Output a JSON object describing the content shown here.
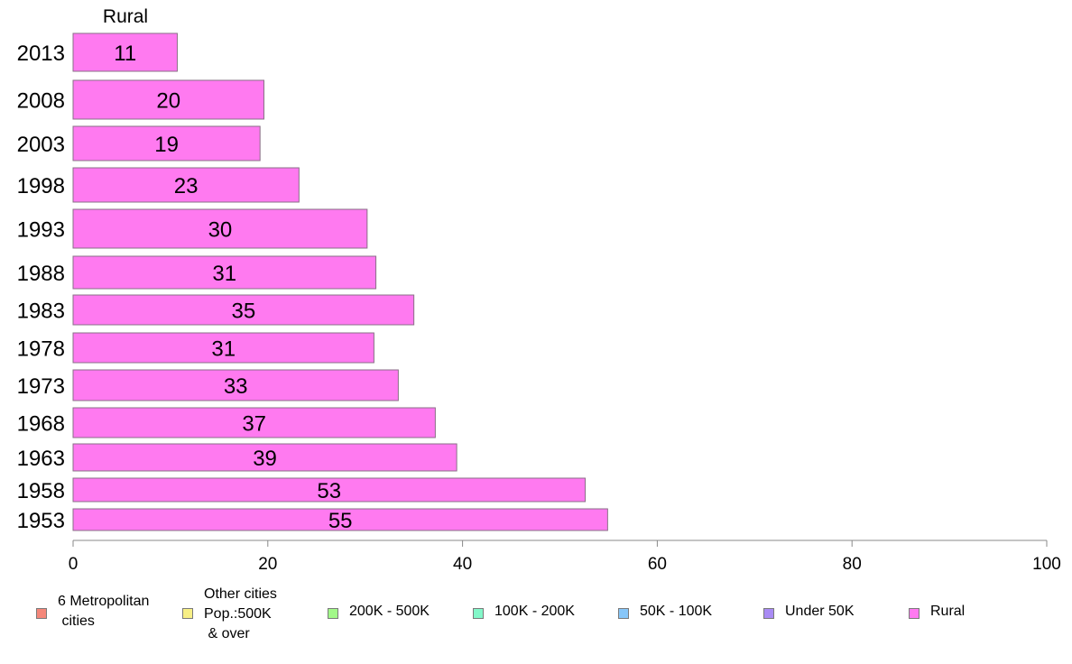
{
  "chart_data": {
    "type": "bar",
    "orientation": "horizontal",
    "stacked": true,
    "title": "Rural",
    "categories": [
      "2013",
      "2008",
      "2003",
      "1998",
      "1993",
      "1988",
      "1983",
      "1978",
      "1973",
      "1968",
      "1963",
      "1958",
      "1953"
    ],
    "series": [
      {
        "name": "6 Metropolitan\n cities",
        "color": "#f4877a",
        "values": [
          0,
          0,
          0,
          0,
          0,
          0,
          0,
          0,
          0,
          0,
          0,
          0,
          0
        ]
      },
      {
        "name": "Other cities\nPop.:500K\n & over",
        "color": "#f7ef86",
        "values": [
          0,
          0,
          0,
          0,
          0,
          0,
          0,
          0,
          0,
          0,
          0,
          0,
          0
        ]
      },
      {
        "name": "200K - 500K",
        "color": "#a2f889",
        "values": [
          0,
          0,
          0,
          0,
          0,
          0,
          0,
          0,
          0,
          0,
          0,
          0,
          0
        ]
      },
      {
        "name": "100K - 200K",
        "color": "#83f7c9",
        "values": [
          0,
          0,
          0,
          0,
          0,
          0,
          0,
          0,
          0,
          0,
          0,
          0,
          0
        ]
      },
      {
        "name": "50K - 100K",
        "color": "#87c6f8",
        "values": [
          0,
          0,
          0,
          0,
          0,
          0,
          0,
          0,
          0,
          0,
          0,
          0,
          0
        ]
      },
      {
        "name": "Under 50K",
        "color": "#a98bf4",
        "values": [
          0,
          0,
          0,
          0,
          0,
          0,
          0,
          0,
          0,
          0,
          0,
          0,
          0
        ]
      },
      {
        "name": "Rural",
        "color": "#ff7af0",
        "values": [
          10.7,
          19.6,
          19.2,
          23.2,
          30.2,
          31.1,
          35,
          30.9,
          33.4,
          37.2,
          39.4,
          52.6,
          54.9
        ],
        "labels": [
          "11",
          "20",
          "19",
          "23",
          "30",
          "31",
          "35",
          "31",
          "33",
          "37",
          "39",
          "53",
          "55"
        ]
      }
    ],
    "xlim": [
      0,
      100
    ],
    "xticks": [
      "0",
      "20",
      "40",
      "60",
      "80",
      "100"
    ],
    "xlabel": "",
    "ylabel": "",
    "grid": false,
    "legend_position": "bottom"
  }
}
